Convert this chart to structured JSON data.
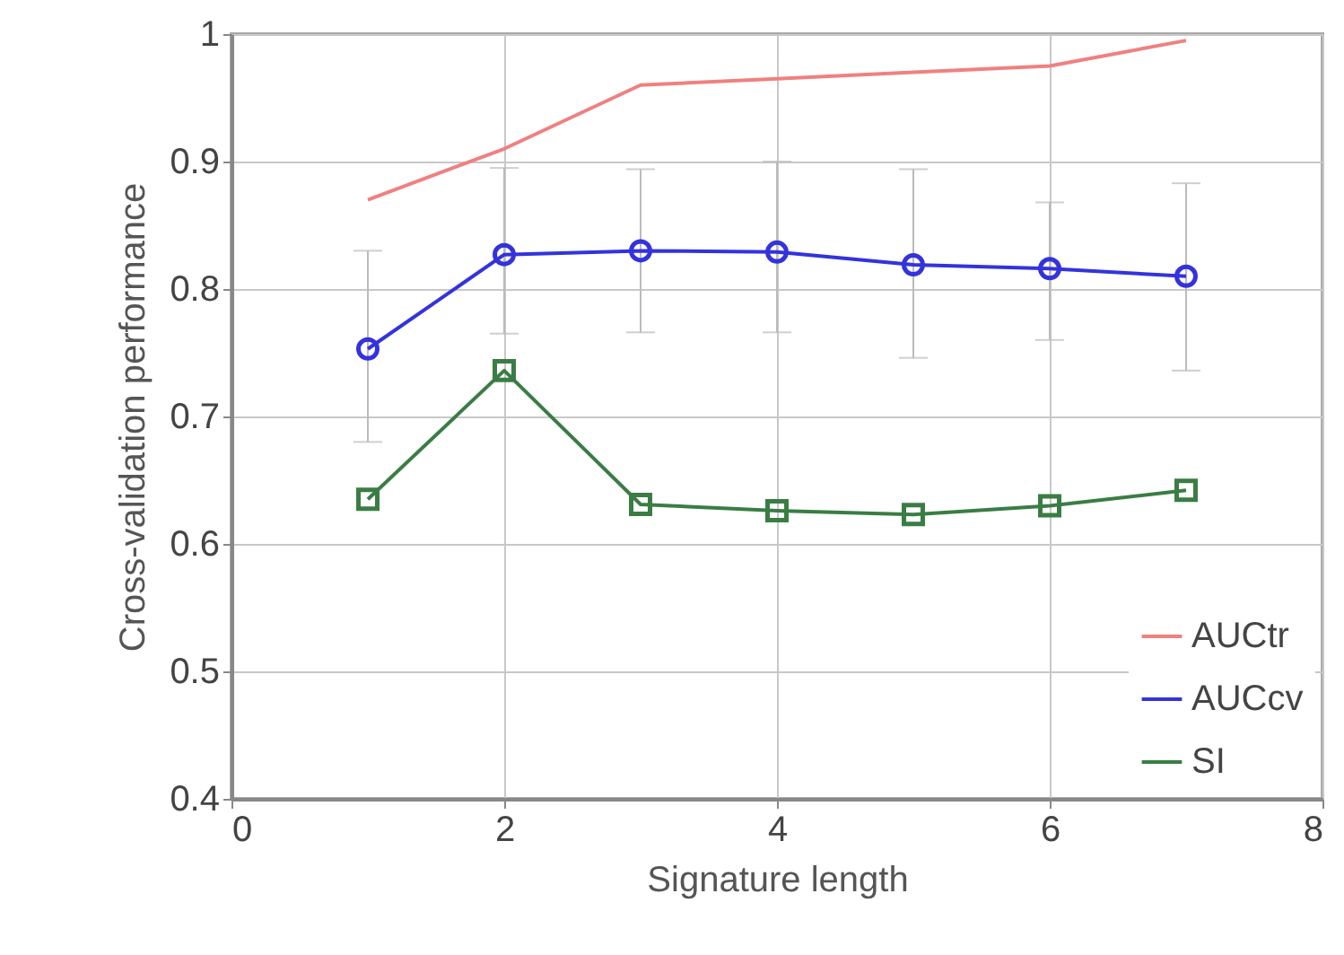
{
  "chart_data": {
    "type": "line",
    "xlabel": "Signature length",
    "ylabel": "Cross-validation performance",
    "x": [
      1,
      2,
      3,
      4,
      5,
      6,
      7
    ],
    "series": [
      {
        "name": "AUCtr",
        "color": "#f08080",
        "marker": "none",
        "values": [
          0.87,
          0.91,
          0.96,
          0.965,
          0.97,
          0.975,
          0.995
        ]
      },
      {
        "name": "AUCcv",
        "color": "#3333dd",
        "marker": "circle",
        "values": [
          0.753,
          0.827,
          0.83,
          0.829,
          0.819,
          0.816,
          0.81
        ],
        "errors": [
          [
            0.68,
            0.83
          ],
          [
            0.765,
            0.895
          ],
          [
            0.766,
            0.894
          ],
          [
            0.766,
            0.9
          ],
          [
            0.746,
            0.894
          ],
          [
            0.76,
            0.868
          ],
          [
            0.736,
            0.883
          ]
        ]
      },
      {
        "name": "SI",
        "color": "#3a7d44",
        "marker": "square",
        "values": [
          0.635,
          0.736,
          0.631,
          0.626,
          0.623,
          0.63,
          0.642
        ]
      }
    ],
    "xlim": [
      0,
      8
    ],
    "xticks": [
      0,
      2,
      4,
      6,
      8
    ],
    "ylim": [
      0.4,
      1
    ],
    "yticks": [
      0.4,
      0.5,
      0.6,
      0.7,
      0.8,
      0.9,
      1
    ],
    "grid": true,
    "legend": "bottom right"
  }
}
